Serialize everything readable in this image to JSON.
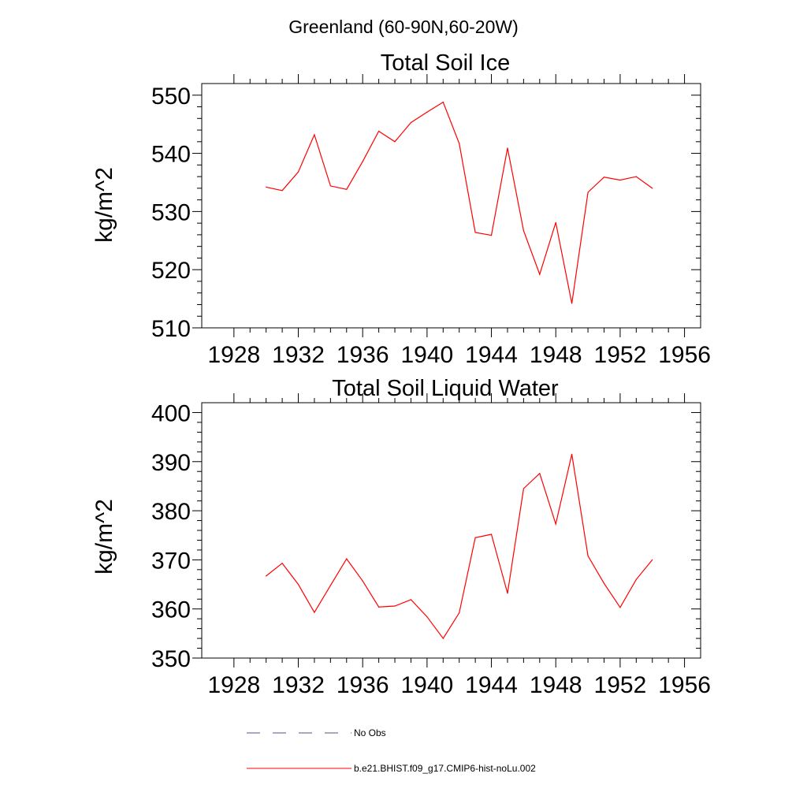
{
  "figure": {
    "title": "Greenland (60-90N,60-20W)",
    "line_color": "#ff0000",
    "obs_color": "#55557f"
  },
  "legend": {
    "placement": "bottom",
    "entries": [
      {
        "label": "No Obs",
        "style": "dashed"
      },
      {
        "label": "b.e21.BHIST.f09_g17.CMIP6-hist-noLu.002",
        "style": "solid"
      }
    ]
  },
  "chart_data": [
    {
      "type": "line",
      "title": "Total Soil Ice",
      "ylabel": "kg/m^2",
      "xlabel": "",
      "xlim": [
        1926,
        1957
      ],
      "ylim": [
        510,
        552
      ],
      "xticks": [
        1928,
        1932,
        1936,
        1940,
        1944,
        1948,
        1952,
        1956
      ],
      "yticks": [
        510,
        520,
        530,
        540,
        550
      ],
      "x": [
        1930,
        1931,
        1932,
        1933,
        1934,
        1935,
        1936,
        1937,
        1938,
        1939,
        1940,
        1941,
        1942,
        1943,
        1944,
        1945,
        1946,
        1947,
        1948,
        1949,
        1950,
        1951,
        1952,
        1953,
        1954
      ],
      "series": [
        {
          "values": [
            534.2,
            533.6,
            536.8,
            543.2,
            534.4,
            533.8,
            538.6,
            543.8,
            542.0,
            545.3,
            547.1,
            548.8,
            541.7,
            526.4,
            525.9,
            540.9,
            526.7,
            519.2,
            528.1,
            514.2,
            533.3,
            535.9,
            535.4,
            536.0,
            534.0
          ]
        }
      ]
    },
    {
      "type": "line",
      "title": "Total Soil Liquid Water",
      "ylabel": "kg/m^2",
      "xlabel": "",
      "xlim": [
        1926,
        1957
      ],
      "ylim": [
        350,
        402
      ],
      "xticks": [
        1928,
        1932,
        1936,
        1940,
        1944,
        1948,
        1952,
        1956
      ],
      "yticks": [
        350,
        360,
        370,
        380,
        390,
        400
      ],
      "x": [
        1930,
        1931,
        1932,
        1933,
        1934,
        1935,
        1936,
        1937,
        1938,
        1939,
        1940,
        1941,
        1942,
        1943,
        1944,
        1945,
        1946,
        1947,
        1948,
        1949,
        1950,
        1951,
        1952,
        1953,
        1954
      ],
      "series": [
        {
          "values": [
            366.7,
            369.3,
            365.0,
            359.3,
            364.8,
            370.2,
            365.7,
            360.4,
            360.6,
            361.9,
            358.4,
            354.0,
            359.2,
            374.5,
            375.2,
            363.2,
            384.5,
            387.6,
            377.3,
            391.5,
            370.8,
            365.2,
            360.3,
            366.0,
            370.0
          ]
        }
      ]
    }
  ]
}
